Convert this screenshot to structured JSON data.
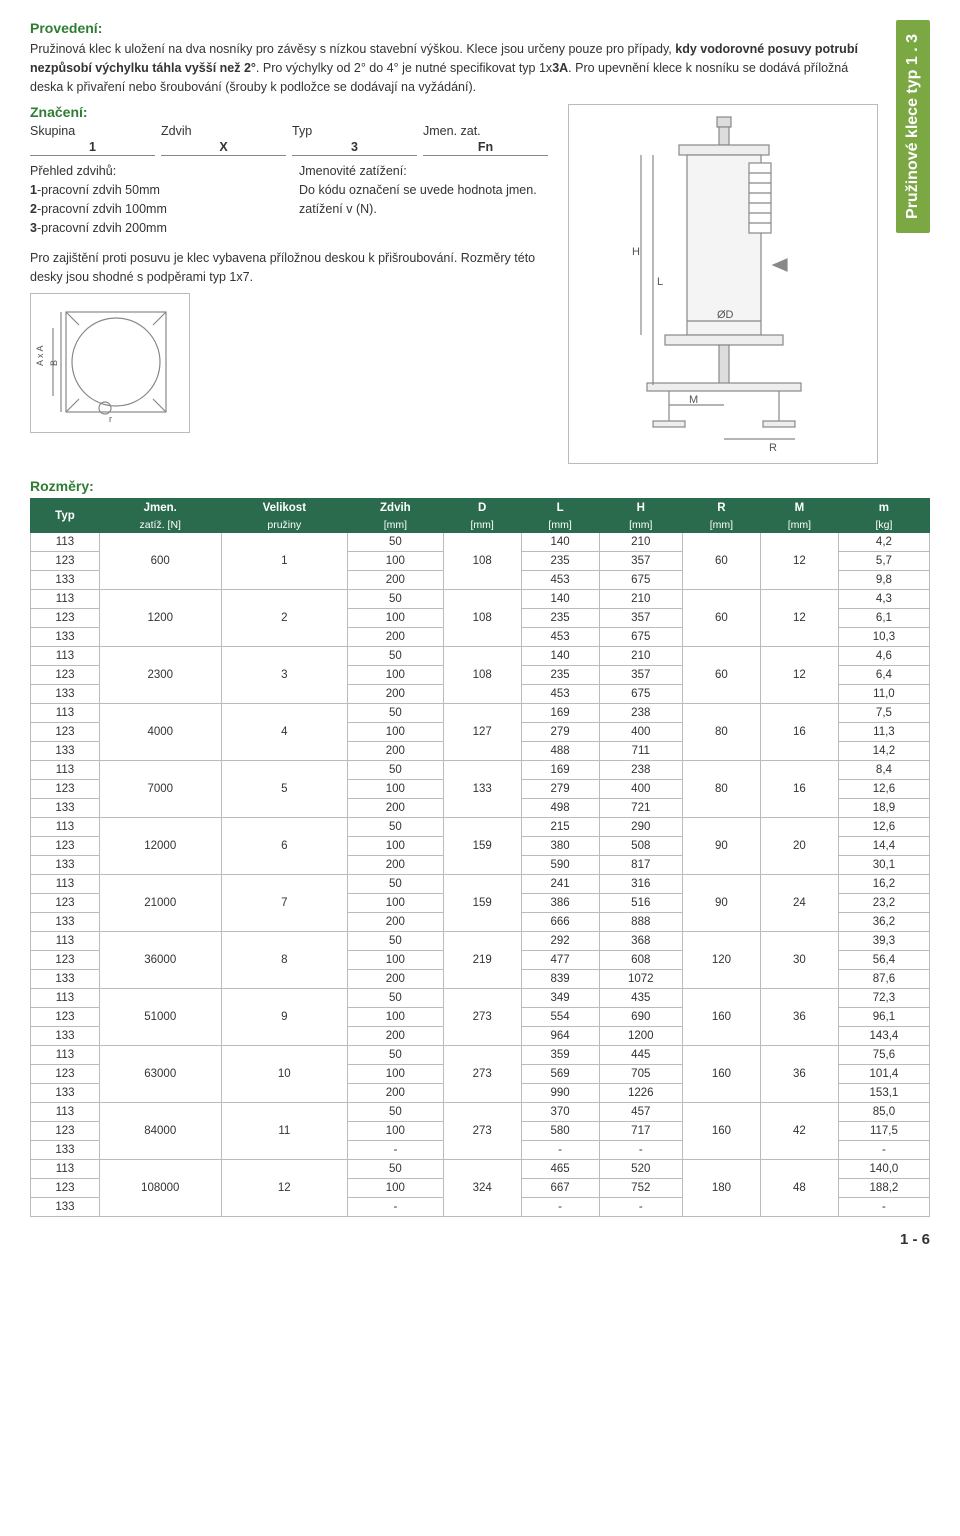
{
  "side_tab": "Pružinové klece typ 1 . 3",
  "sec1_title": "Provedení:",
  "para1_a": "Pružinová klec k uložení na dva nosníky pro závěsy s nízkou stavební výškou. Klece jsou určeny pouze pro případy, ",
  "para1_bold": "kdy vodorovné posuvy potrubí nezpůsobí výchylku táhla vyšší než 2°",
  "para1_b": ". Pro výchylky od 2° do 4° je nutné specifikovat typ 1x",
  "para1_bold2": "3A",
  "para1_c": ". Pro upevnění klece k nosníku se dodává příložná deska k přivaření nebo šroubování (šrouby k podložce se dodávají na vyžádání).",
  "sec2_title": "Značení:",
  "mark_h1": "Skupina",
  "mark_h2": "Zdvih",
  "mark_h3": "Typ",
  "mark_h4": "Jmen. zat.",
  "mark_v1": "1",
  "mark_v2": "X",
  "mark_v3": "3",
  "mark_v4": "Fn",
  "col_l_title": "Přehled zdvihů:",
  "col_l_1a": "1",
  "col_l_1b": "-pracovní zdvih 50mm",
  "col_l_2a": "2",
  "col_l_2b": "-pracovní zdvih 100mm",
  "col_l_3a": "3",
  "col_l_3b": "-pracovní zdvih 200mm",
  "col_r_title": "Jmenovité zatížení:",
  "col_r_body": "Do kódu označení se uvede hodnota jmen. zatížení v (N).",
  "mid_text": "Pro zajištění proti posuvu je klec vybavena příložnou deskou k přišroubování. Rozměry této desky jsou shodné s podpěrami typ 1x7.",
  "diag_labels": {
    "H": "H",
    "L": "L",
    "D": "ØD",
    "M": "M",
    "R": "R",
    "AxA": "A x A",
    "B": "B",
    "r": "r"
  },
  "rozmery_title": "Rozměry:",
  "headers": [
    {
      "t": "Typ",
      "s": ""
    },
    {
      "t": "Jmen.",
      "s": "zatíž. [N]"
    },
    {
      "t": "Velikost",
      "s": "pružiny"
    },
    {
      "t": "Zdvih",
      "s": "[mm]"
    },
    {
      "t": "D",
      "s": "[mm]"
    },
    {
      "t": "L",
      "s": "[mm]"
    },
    {
      "t": "H",
      "s": "[mm]"
    },
    {
      "t": "R",
      "s": "[mm]"
    },
    {
      "t": "M",
      "s": "[mm]"
    },
    {
      "t": "m",
      "s": "[kg]"
    }
  ],
  "groups": [
    {
      "jz": "600",
      "vp": "1",
      "d": "108",
      "r": "60",
      "m": "12",
      "rows": [
        {
          "typ": "113",
          "zd": "50",
          "l": "140",
          "h": "210",
          "mm": "4,2"
        },
        {
          "typ": "123",
          "zd": "100",
          "l": "235",
          "h": "357",
          "mm": "5,7"
        },
        {
          "typ": "133",
          "zd": "200",
          "l": "453",
          "h": "675",
          "mm": "9,8"
        }
      ]
    },
    {
      "jz": "1200",
      "vp": "2",
      "d": "108",
      "r": "60",
      "m": "12",
      "rows": [
        {
          "typ": "113",
          "zd": "50",
          "l": "140",
          "h": "210",
          "mm": "4,3"
        },
        {
          "typ": "123",
          "zd": "100",
          "l": "235",
          "h": "357",
          "mm": "6,1"
        },
        {
          "typ": "133",
          "zd": "200",
          "l": "453",
          "h": "675",
          "mm": "10,3"
        }
      ]
    },
    {
      "jz": "2300",
      "vp": "3",
      "d": "108",
      "r": "60",
      "m": "12",
      "rows": [
        {
          "typ": "113",
          "zd": "50",
          "l": "140",
          "h": "210",
          "mm": "4,6"
        },
        {
          "typ": "123",
          "zd": "100",
          "l": "235",
          "h": "357",
          "mm": "6,4"
        },
        {
          "typ": "133",
          "zd": "200",
          "l": "453",
          "h": "675",
          "mm": "11,0"
        }
      ]
    },
    {
      "jz": "4000",
      "vp": "4",
      "d": "127",
      "r": "80",
      "m": "16",
      "rows": [
        {
          "typ": "113",
          "zd": "50",
          "l": "169",
          "h": "238",
          "mm": "7,5"
        },
        {
          "typ": "123",
          "zd": "100",
          "l": "279",
          "h": "400",
          "mm": "11,3"
        },
        {
          "typ": "133",
          "zd": "200",
          "l": "488",
          "h": "711",
          "mm": "14,2"
        }
      ]
    },
    {
      "jz": "7000",
      "vp": "5",
      "d": "133",
      "r": "80",
      "m": "16",
      "rows": [
        {
          "typ": "113",
          "zd": "50",
          "l": "169",
          "h": "238",
          "mm": "8,4"
        },
        {
          "typ": "123",
          "zd": "100",
          "l": "279",
          "h": "400",
          "mm": "12,6"
        },
        {
          "typ": "133",
          "zd": "200",
          "l": "498",
          "h": "721",
          "mm": "18,9"
        }
      ]
    },
    {
      "jz": "12000",
      "vp": "6",
      "d": "159",
      "r": "90",
      "m": "20",
      "rows": [
        {
          "typ": "113",
          "zd": "50",
          "l": "215",
          "h": "290",
          "mm": "12,6"
        },
        {
          "typ": "123",
          "zd": "100",
          "l": "380",
          "h": "508",
          "mm": "14,4"
        },
        {
          "typ": "133",
          "zd": "200",
          "l": "590",
          "h": "817",
          "mm": "30,1"
        }
      ]
    },
    {
      "jz": "21000",
      "vp": "7",
      "d": "159",
      "r": "90",
      "m": "24",
      "rows": [
        {
          "typ": "113",
          "zd": "50",
          "l": "241",
          "h": "316",
          "mm": "16,2"
        },
        {
          "typ": "123",
          "zd": "100",
          "l": "386",
          "h": "516",
          "mm": "23,2"
        },
        {
          "typ": "133",
          "zd": "200",
          "l": "666",
          "h": "888",
          "mm": "36,2"
        }
      ]
    },
    {
      "jz": "36000",
      "vp": "8",
      "d": "219",
      "r": "120",
      "m": "30",
      "rows": [
        {
          "typ": "113",
          "zd": "50",
          "l": "292",
          "h": "368",
          "mm": "39,3"
        },
        {
          "typ": "123",
          "zd": "100",
          "l": "477",
          "h": "608",
          "mm": "56,4"
        },
        {
          "typ": "133",
          "zd": "200",
          "l": "839",
          "h": "1072",
          "mm": "87,6"
        }
      ]
    },
    {
      "jz": "51000",
      "vp": "9",
      "d": "273",
      "r": "160",
      "m": "36",
      "rows": [
        {
          "typ": "113",
          "zd": "50",
          "l": "349",
          "h": "435",
          "mm": "72,3"
        },
        {
          "typ": "123",
          "zd": "100",
          "l": "554",
          "h": "690",
          "mm": "96,1"
        },
        {
          "typ": "133",
          "zd": "200",
          "l": "964",
          "h": "1200",
          "mm": "143,4"
        }
      ]
    },
    {
      "jz": "63000",
      "vp": "10",
      "d": "273",
      "r": "160",
      "m": "36",
      "rows": [
        {
          "typ": "113",
          "zd": "50",
          "l": "359",
          "h": "445",
          "mm": "75,6"
        },
        {
          "typ": "123",
          "zd": "100",
          "l": "569",
          "h": "705",
          "mm": "101,4"
        },
        {
          "typ": "133",
          "zd": "200",
          "l": "990",
          "h": "1226",
          "mm": "153,1"
        }
      ]
    },
    {
      "jz": "84000",
      "vp": "11",
      "d": "273",
      "r": "160",
      "m": "42",
      "rows": [
        {
          "typ": "113",
          "zd": "50",
          "l": "370",
          "h": "457",
          "mm": "85,0"
        },
        {
          "typ": "123",
          "zd": "100",
          "l": "580",
          "h": "717",
          "mm": "117,5"
        },
        {
          "typ": "133",
          "zd": "-",
          "l": "-",
          "h": "-",
          "mm": "-"
        }
      ]
    },
    {
      "jz": "108000",
      "vp": "12",
      "d": "324",
      "r": "180",
      "m": "48",
      "rows": [
        {
          "typ": "113",
          "zd": "50",
          "l": "465",
          "h": "520",
          "mm": "140,0"
        },
        {
          "typ": "123",
          "zd": "100",
          "l": "667",
          "h": "752",
          "mm": "188,2"
        },
        {
          "typ": "133",
          "zd": "-",
          "l": "-",
          "h": "-",
          "mm": "-"
        }
      ]
    }
  ],
  "page_num": "1 - 6"
}
